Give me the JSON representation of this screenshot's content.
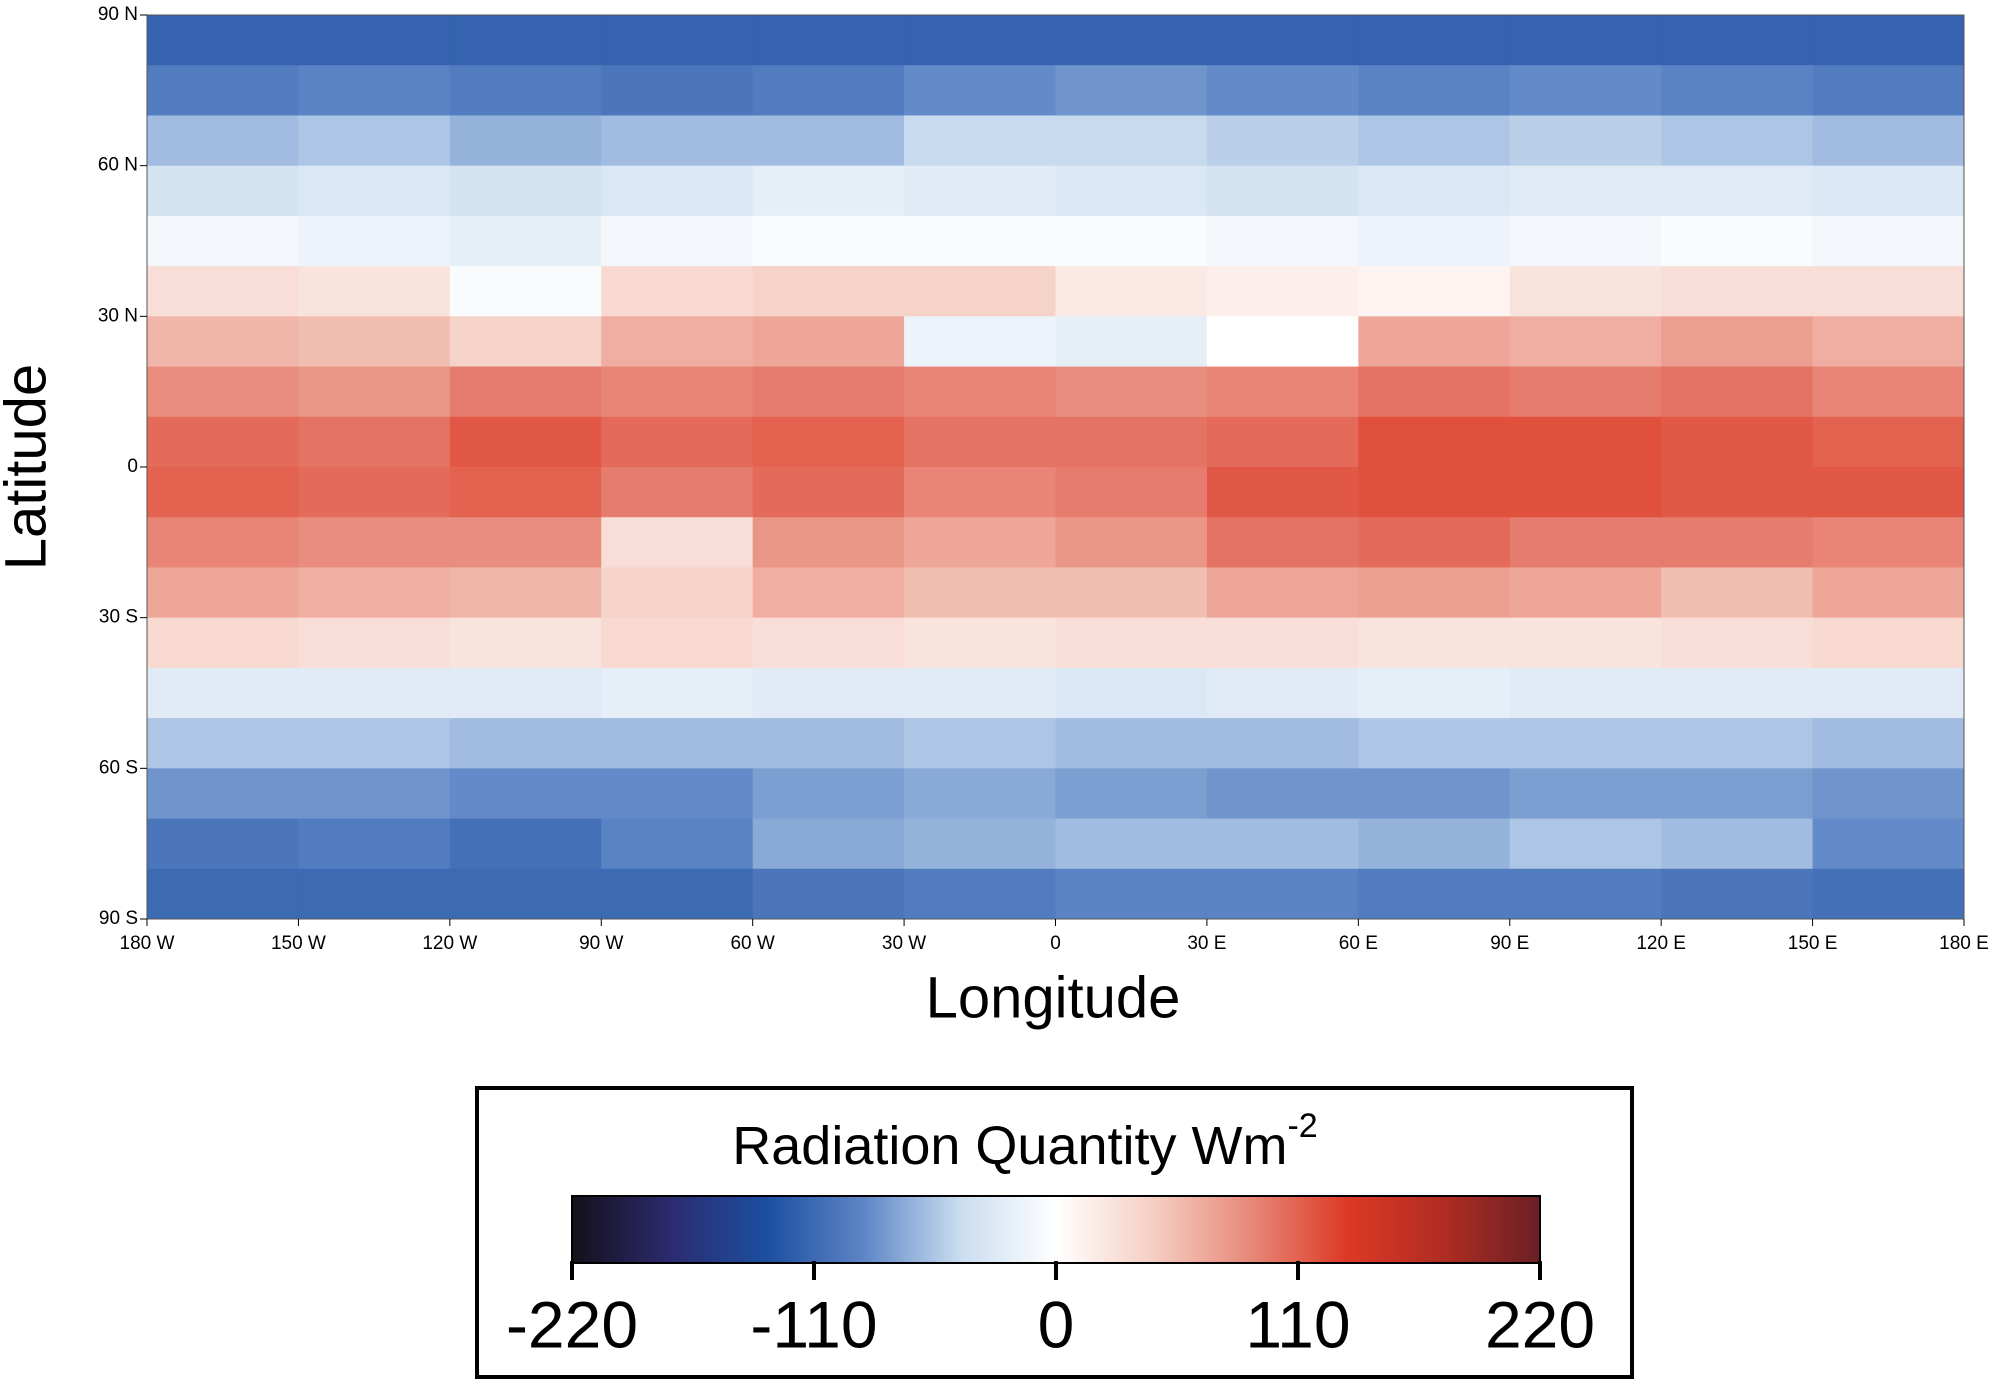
{
  "chart_data": {
    "type": "heatmap",
    "xlabel": "Longitude",
    "ylabel": "Latitude",
    "xlim": [
      -180,
      180
    ],
    "ylim": [
      -90,
      90
    ],
    "xticks": [
      {
        "value": -180,
        "label": "180 W"
      },
      {
        "value": -150,
        "label": "150 W"
      },
      {
        "value": -120,
        "label": "120 W"
      },
      {
        "value": -90,
        "label": "90 W"
      },
      {
        "value": -60,
        "label": "60 W"
      },
      {
        "value": -30,
        "label": "30 W"
      },
      0,
      {
        "value": 30,
        "label": "30 E"
      },
      {
        "value": 60,
        "label": "60 E"
      },
      {
        "value": 90,
        "label": "90 E"
      },
      {
        "value": 120,
        "label": "120 E"
      },
      {
        "value": 150,
        "label": "150 E"
      },
      {
        "value": 180,
        "label": "180 E"
      }
    ],
    "yticks": [
      {
        "value": 90,
        "label": "90 N"
      },
      {
        "value": 60,
        "label": "60 N"
      },
      {
        "value": 30,
        "label": "30 N"
      },
      0,
      {
        "value": -30,
        "label": "30 S"
      },
      {
        "value": -60,
        "label": "60 S"
      },
      {
        "value": -90,
        "label": "90 S"
      }
    ],
    "x": [
      -165,
      -135,
      -105,
      -75,
      -45,
      -15,
      15,
      45,
      75,
      105,
      135,
      165
    ],
    "y": [
      85,
      75,
      65,
      55,
      45,
      35,
      25,
      15,
      5,
      -5,
      -15,
      -25,
      -35,
      -45,
      -55,
      -65,
      -75,
      -85
    ],
    "z": [
      [
        -115,
        -115,
        -115,
        -115,
        -115,
        -115,
        -115,
        -115,
        -115,
        -115,
        -115,
        -115
      ],
      [
        -95,
        -90,
        -95,
        -100,
        -95,
        -85,
        -80,
        -85,
        -90,
        -85,
        -90,
        -95
      ],
      [
        -60,
        -55,
        -65,
        -60,
        -60,
        -45,
        -45,
        -50,
        -55,
        -50,
        -55,
        -60
      ],
      [
        -35,
        -30,
        -35,
        -30,
        -20,
        -25,
        -30,
        -35,
        -30,
        -25,
        -25,
        -30
      ],
      [
        -10,
        -15,
        -20,
        -10,
        -5,
        -5,
        -5,
        -10,
        -15,
        -10,
        -5,
        -10
      ],
      [
        30,
        25,
        -5,
        35,
        40,
        40,
        20,
        15,
        10,
        25,
        30,
        30
      ],
      [
        60,
        55,
        40,
        65,
        70,
        -15,
        -20,
        0,
        70,
        65,
        75,
        65
      ],
      [
        85,
        80,
        95,
        90,
        95,
        90,
        85,
        90,
        100,
        95,
        100,
        90
      ],
      [
        105,
        100,
        115,
        105,
        110,
        100,
        100,
        105,
        120,
        120,
        115,
        110
      ],
      [
        110,
        105,
        110,
        95,
        105,
        90,
        95,
        115,
        120,
        120,
        115,
        115
      ],
      [
        90,
        85,
        85,
        30,
        80,
        70,
        80,
        100,
        105,
        95,
        95,
        90
      ],
      [
        70,
        65,
        60,
        40,
        65,
        55,
        55,
        70,
        75,
        70,
        55,
        70
      ],
      [
        35,
        30,
        25,
        35,
        30,
        25,
        30,
        30,
        25,
        25,
        30,
        35
      ],
      [
        -25,
        -25,
        -25,
        -20,
        -25,
        -25,
        -30,
        -25,
        -20,
        -25,
        -25,
        -25
      ],
      [
        -55,
        -55,
        -60,
        -60,
        -60,
        -55,
        -60,
        -60,
        -55,
        -55,
        -55,
        -60
      ],
      [
        -80,
        -80,
        -85,
        -85,
        -75,
        -70,
        -75,
        -80,
        -80,
        -75,
        -75,
        -80
      ],
      [
        -100,
        -95,
        -105,
        -90,
        -70,
        -65,
        -60,
        -60,
        -65,
        -55,
        -60,
        -85
      ],
      [
        -110,
        -110,
        -110,
        -110,
        -100,
        -95,
        -90,
        -90,
        -95,
        -95,
        -100,
        -105
      ]
    ],
    "colorbar": {
      "label": "Radiation Quantity Wm",
      "label_exponent": "-2",
      "clim": [
        -220,
        220
      ],
      "ticks": [
        -220,
        -110,
        0,
        110,
        220
      ],
      "colormap": [
        "#151019",
        "#2c2a6e",
        "#1c4ea0",
        "#5c85c6",
        "#c9dcef",
        "#ffffff",
        "#f5cfc4",
        "#e8897a",
        "#dd3a26",
        "#b02c22",
        "#6a2025"
      ]
    }
  }
}
